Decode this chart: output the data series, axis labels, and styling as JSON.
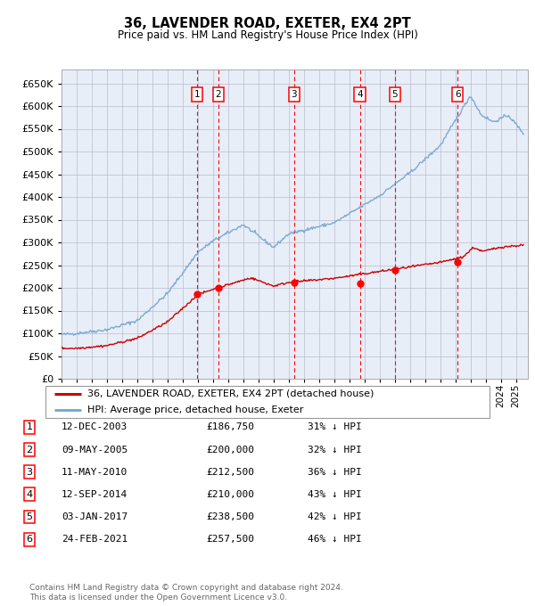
{
  "title": "36, LAVENDER ROAD, EXETER, EX4 2PT",
  "subtitle": "Price paid vs. HM Land Registry's House Price Index (HPI)",
  "ylim": [
    0,
    680000
  ],
  "yticks": [
    0,
    50000,
    100000,
    150000,
    200000,
    250000,
    300000,
    350000,
    400000,
    450000,
    500000,
    550000,
    600000,
    650000
  ],
  "xlim_start": 1995.0,
  "xlim_end": 2025.8,
  "plot_bg_color": "#e8eef8",
  "grid_color": "#bbbbcc",
  "hpi_color": "#7baad4",
  "price_color": "#cc0000",
  "transactions": [
    {
      "num": 1,
      "date": "12-DEC-2003",
      "year": 2003.95,
      "price": 186750
    },
    {
      "num": 2,
      "date": "09-MAY-2005",
      "year": 2005.36,
      "price": 200000
    },
    {
      "num": 3,
      "date": "11-MAY-2010",
      "year": 2010.36,
      "price": 212500
    },
    {
      "num": 4,
      "date": "12-SEP-2014",
      "year": 2014.7,
      "price": 210000
    },
    {
      "num": 5,
      "date": "03-JAN-2017",
      "year": 2017.01,
      "price": 238500
    },
    {
      "num": 6,
      "date": "24-FEB-2021",
      "year": 2021.15,
      "price": 257500
    }
  ],
  "legend_line1": "36, LAVENDER ROAD, EXETER, EX4 2PT (detached house)",
  "legend_line2": "HPI: Average price, detached house, Exeter",
  "footer": "Contains HM Land Registry data © Crown copyright and database right 2024.\nThis data is licensed under the Open Government Licence v3.0.",
  "table_rows": [
    [
      "1",
      "12-DEC-2003",
      "£186,750",
      "31% ↓ HPI"
    ],
    [
      "2",
      "09-MAY-2005",
      "£200,000",
      "32% ↓ HPI"
    ],
    [
      "3",
      "11-MAY-2010",
      "£212,500",
      "36% ↓ HPI"
    ],
    [
      "4",
      "12-SEP-2014",
      "£210,000",
      "43% ↓ HPI"
    ],
    [
      "5",
      "03-JAN-2017",
      "£238,500",
      "42% ↓ HPI"
    ],
    [
      "6",
      "24-FEB-2021",
      "£257,500",
      "46% ↓ HPI"
    ]
  ]
}
